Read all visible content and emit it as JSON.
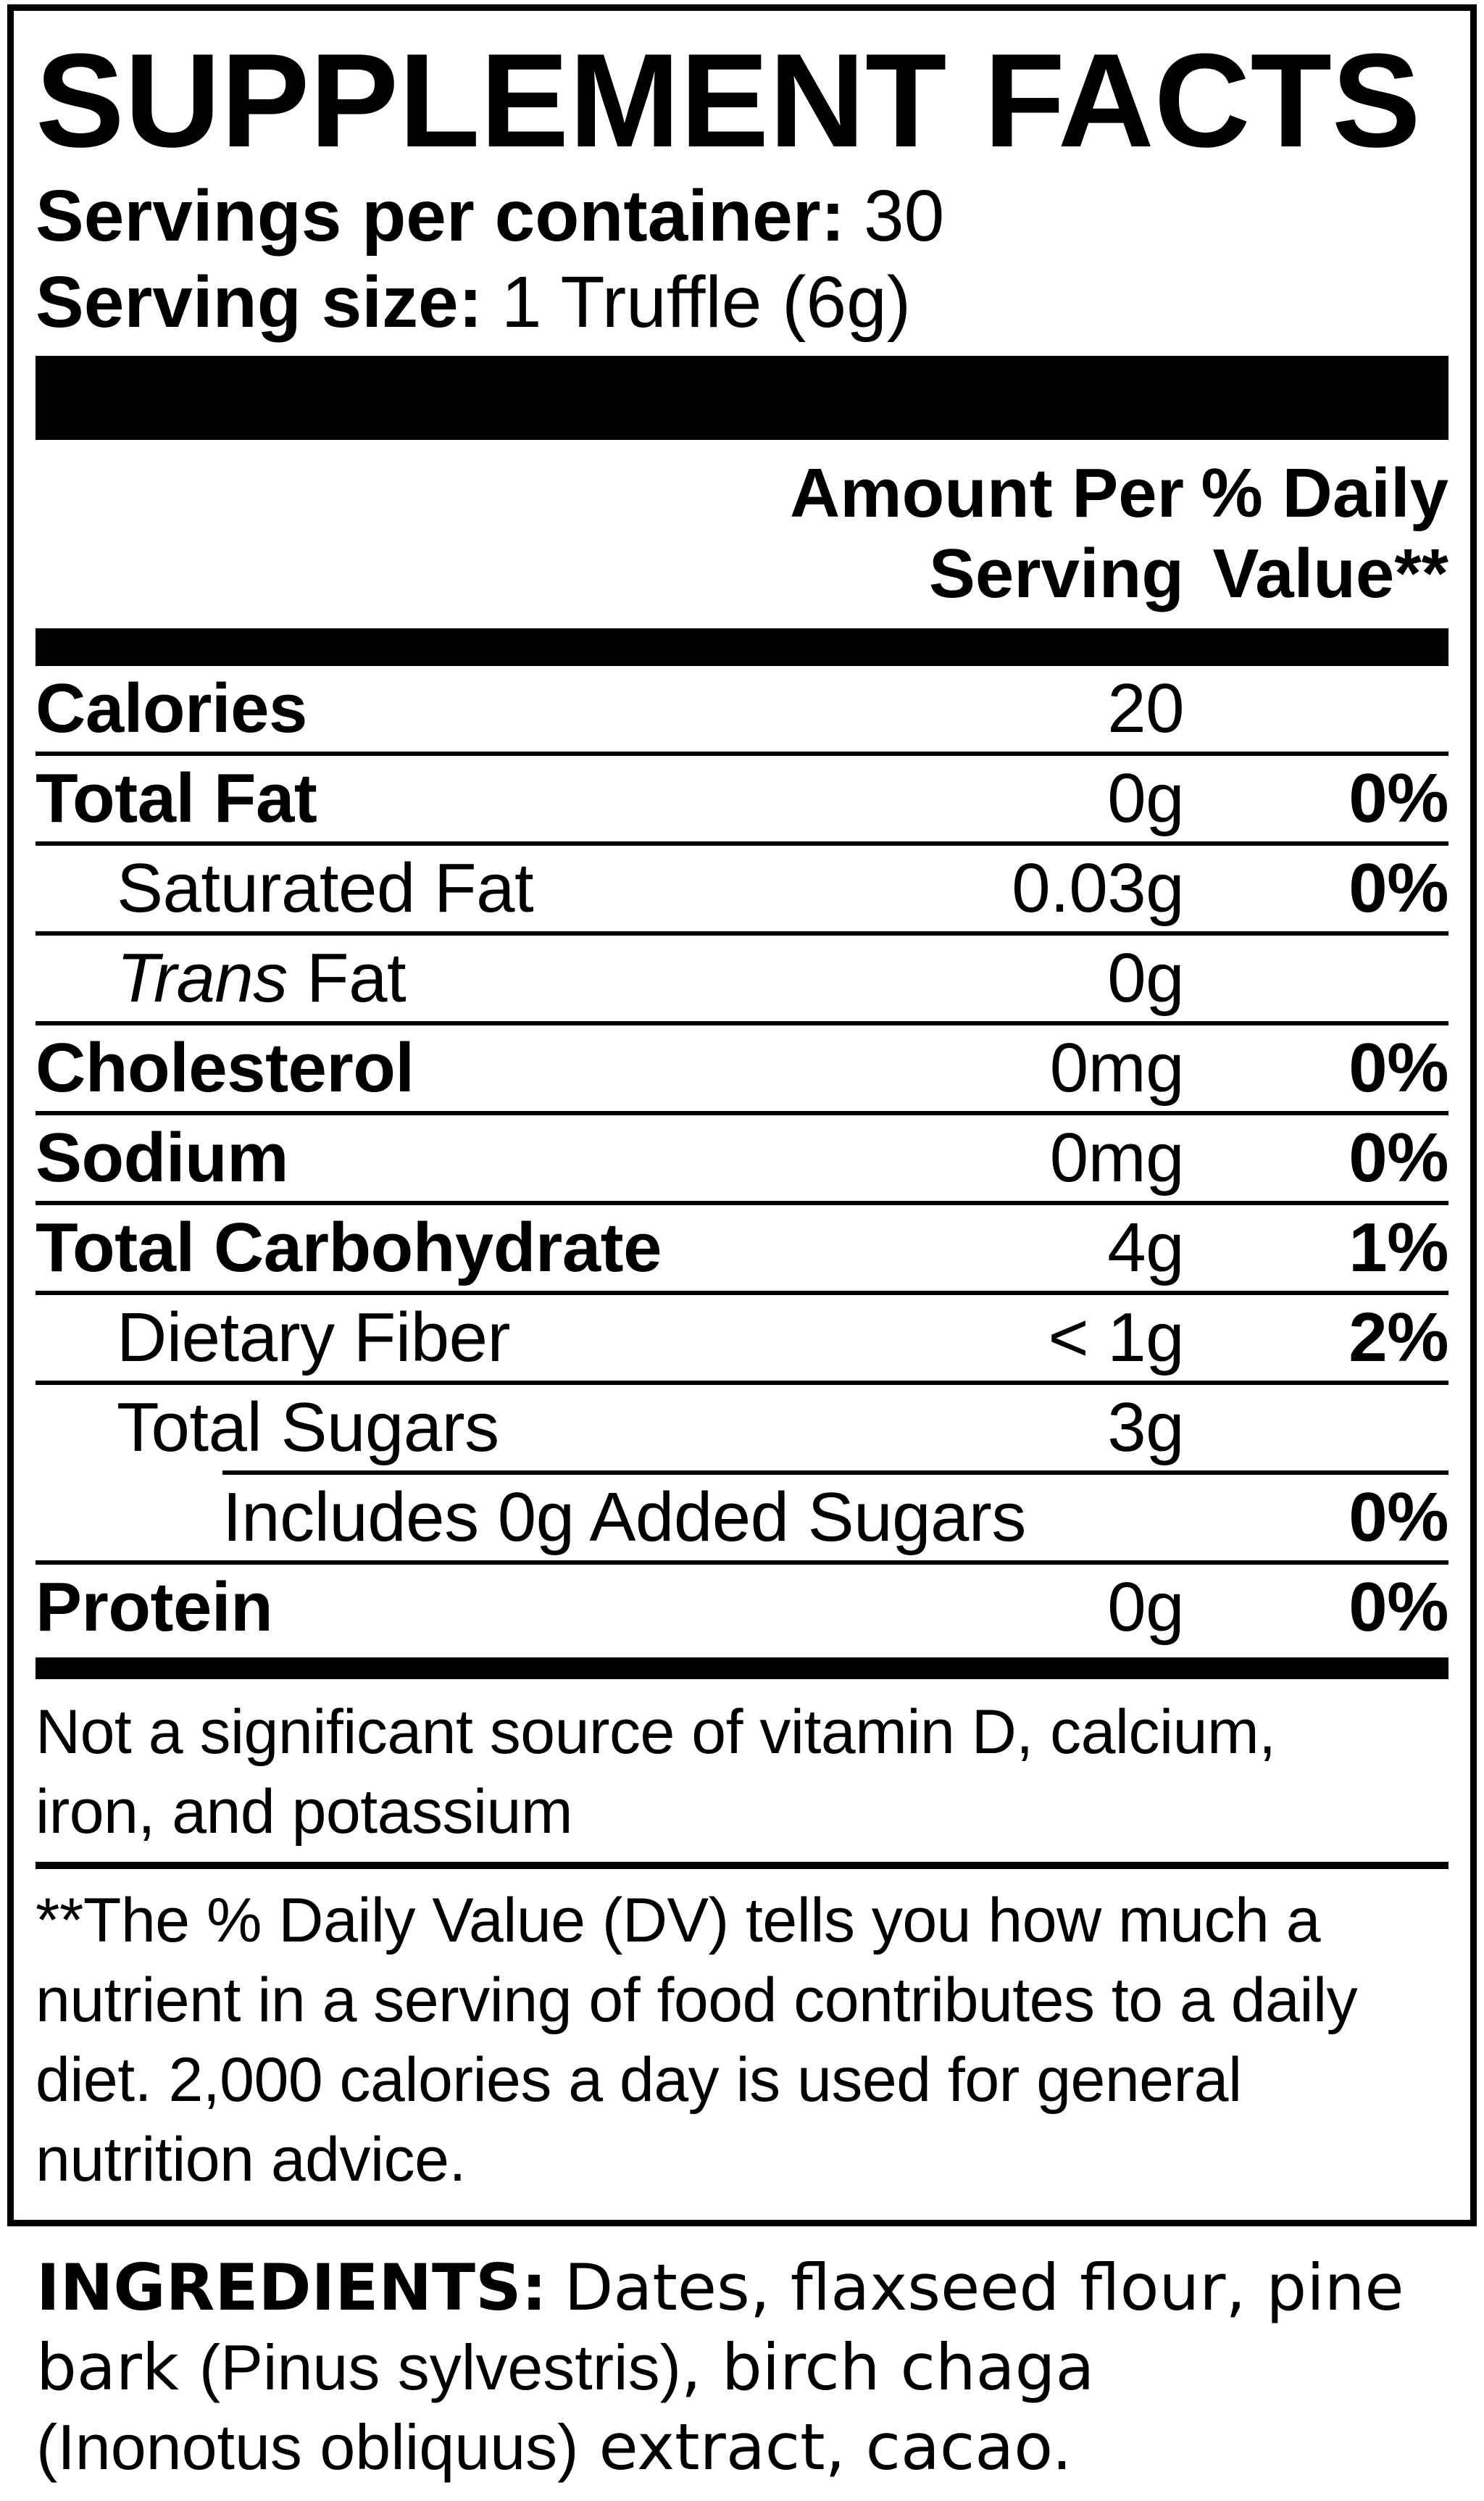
{
  "title": "SUPPLEMENT FACTS",
  "serving_info": {
    "servings_label": "Servings per container:",
    "servings_value": "30",
    "size_label": "Serving size:",
    "size_value": "1 Truffle (6g)"
  },
  "columns": {
    "amount_header": "Amount Per\nServing",
    "dv_header": "% Daily\nValue**"
  },
  "rows": [
    {
      "label": "Calories",
      "amount": "20",
      "dv": ""
    },
    {
      "label": "Total Fat",
      "amount": "0g",
      "dv": "0%"
    },
    {
      "label": "Saturated Fat",
      "amount": "0.03g",
      "dv": "0%"
    },
    {
      "label_italic": "Trans",
      "label_rest": " Fat",
      "amount": "0g",
      "dv": ""
    },
    {
      "label": "Cholesterol",
      "amount": "0mg",
      "dv": "0%"
    },
    {
      "label": "Sodium",
      "amount": "0mg",
      "dv": "0%"
    },
    {
      "label": "Total Carbohydrate",
      "amount": "4g",
      "dv": "1%"
    },
    {
      "label": "Dietary Fiber",
      "amount": "< 1g",
      "dv": "2%"
    },
    {
      "label": "Total Sugars",
      "amount": "3g",
      "dv": ""
    },
    {
      "label": "Includes 0g Added Sugars",
      "amount": "",
      "dv": "0%"
    },
    {
      "label": "Protein",
      "amount": "0g",
      "dv": "0%"
    }
  ],
  "footnotes": {
    "significance": "Not a significant source of vitamin D, calcium,\niron, and potassium",
    "daily_value": "**The % Daily Value (DV) tells you how much a\nnutrient in a serving of food contributes to a daily\ndiet. 2,000 calories a day is used for general\nnutrition advice."
  },
  "ingredients": {
    "heading": "INGREDIENTS:",
    "part1": "Dates, flaxseed flour, pine\nbark ",
    "latin1": "(Pinus sylvestris)",
    "part2": ", birch chaga\n",
    "latin2": "(Inonotus obliquus)",
    "part3": " extract, cacao."
  },
  "colors": {
    "foreground": "#000000",
    "background": "#ffffff"
  }
}
